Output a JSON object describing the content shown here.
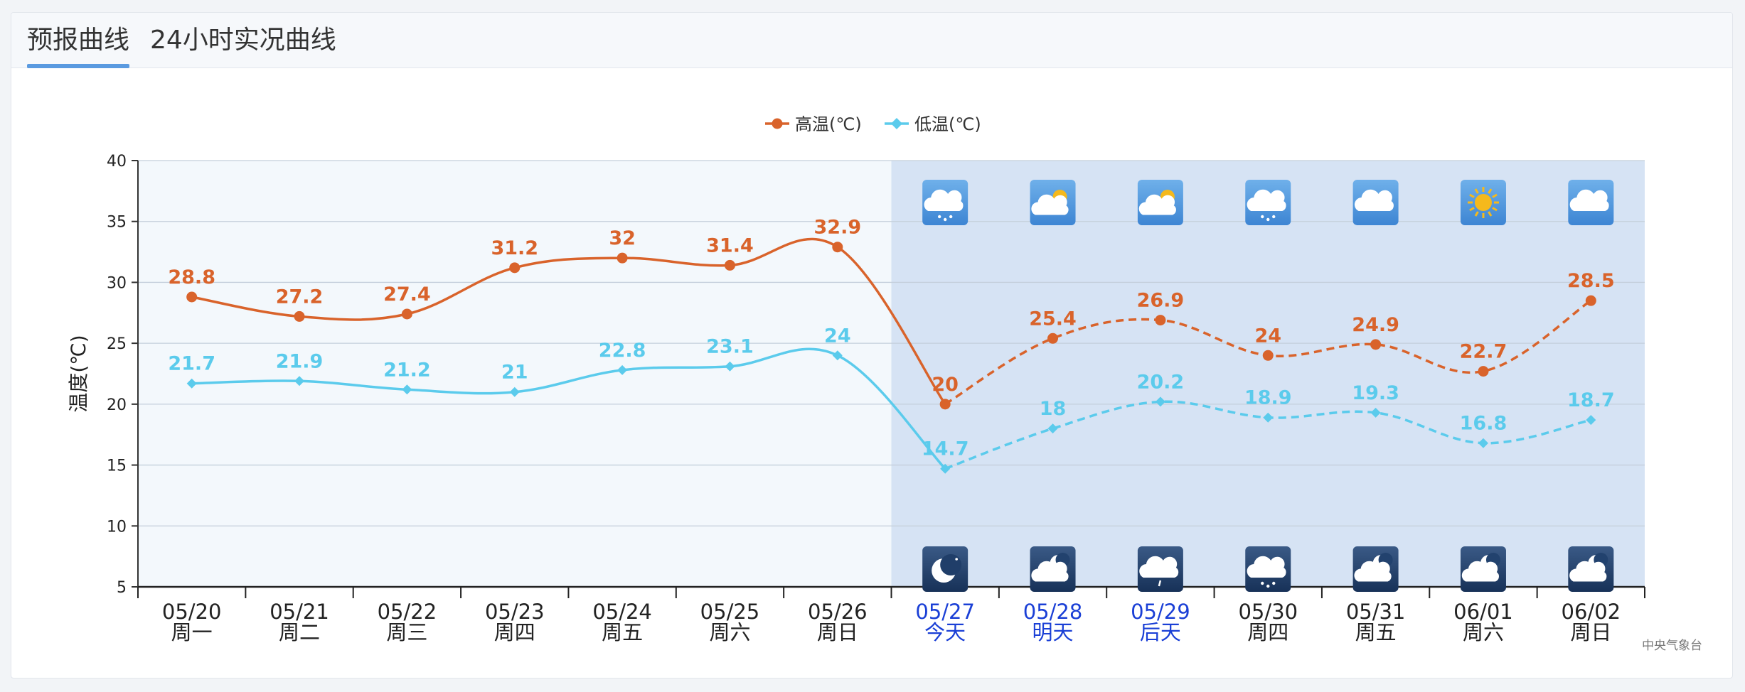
{
  "tabs": [
    {
      "label": "预报曲线",
      "active": true
    },
    {
      "label": "24小时实况曲线",
      "active": false
    }
  ],
  "source": "中央气象台",
  "colors": {
    "high": "#d9632b",
    "low": "#5bcbec",
    "future_highlight": "#5a1fd0",
    "past_bg": "#f3f8fc",
    "forecast_bg": "#d6e3f4"
  },
  "chart_data": {
    "type": "line",
    "ylabel": "温度(℃)",
    "ylim": [
      5,
      40
    ],
    "yticks": [
      5,
      10,
      15,
      20,
      25,
      30,
      35,
      40
    ],
    "grid": true,
    "legend_position": "top-center",
    "categories": [
      {
        "date": "05/20",
        "day": "周一"
      },
      {
        "date": "05/21",
        "day": "周二"
      },
      {
        "date": "05/22",
        "day": "周三"
      },
      {
        "date": "05/23",
        "day": "周四"
      },
      {
        "date": "05/24",
        "day": "周五"
      },
      {
        "date": "05/25",
        "day": "周六"
      },
      {
        "date": "05/26",
        "day": "周日"
      },
      {
        "date": "05/27",
        "day": "今天",
        "highlight": true
      },
      {
        "date": "05/28",
        "day": "明天",
        "highlight": true
      },
      {
        "date": "05/29",
        "day": "后天",
        "highlight": true
      },
      {
        "date": "05/30",
        "day": "周四"
      },
      {
        "date": "05/31",
        "day": "周五"
      },
      {
        "date": "06/01",
        "day": "周六"
      },
      {
        "date": "06/02",
        "day": "周日"
      }
    ],
    "forecast_start_index": 7,
    "series": [
      {
        "name": "高温(℃)",
        "values": [
          28.8,
          27.2,
          27.4,
          31.2,
          32,
          31.4,
          32.9,
          20,
          25.4,
          26.9,
          24,
          24.9,
          22.7,
          28.5
        ],
        "marker": "circle"
      },
      {
        "name": "低温(℃)",
        "values": [
          21.7,
          21.9,
          21.2,
          21,
          22.8,
          23.1,
          24,
          14.7,
          18,
          20.2,
          18.9,
          19.3,
          16.8,
          18.7
        ],
        "marker": "diamond"
      }
    ],
    "day_icons": [
      "snow-cloud-icon",
      "partly-sunny-icon",
      "partly-sunny-icon",
      "snow-cloud-icon",
      "cloud-icon",
      "sun-icon",
      "cloud-icon"
    ],
    "night_icons": [
      "moon-icon",
      "cloudy-night-icon",
      "rain-cloud-icon",
      "snow-cloud-icon",
      "cloudy-night-icon",
      "cloudy-night-icon",
      "cloudy-night-icon"
    ]
  }
}
